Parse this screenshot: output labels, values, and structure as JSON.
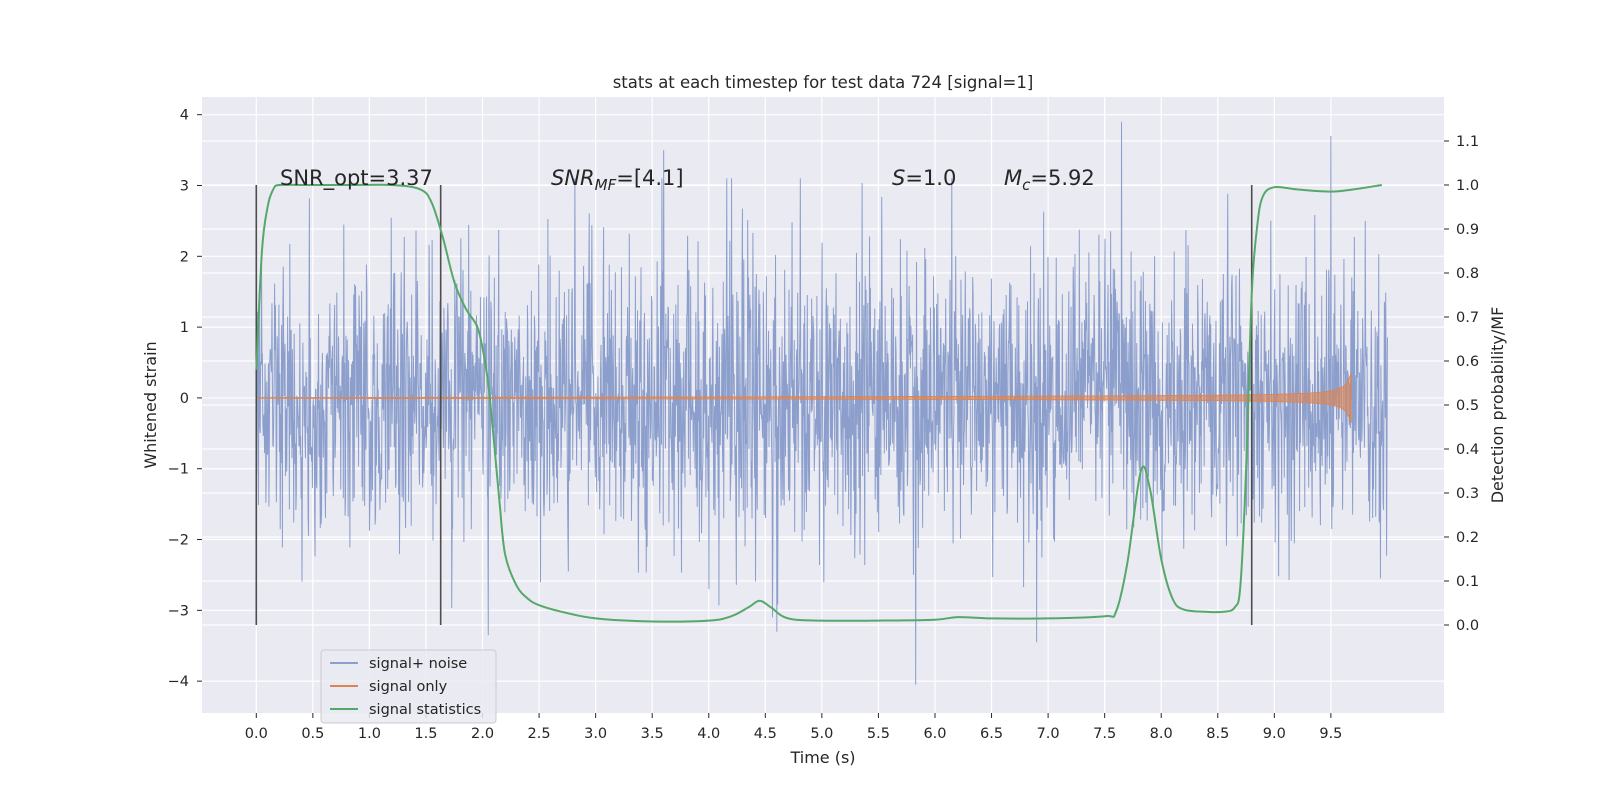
{
  "chart_data": {
    "type": "line",
    "title": "stats at each timestep for test data 724 [signal=1]",
    "xlabel": "Time (s)",
    "ylabel": "Whitened strain",
    "ylabel_right": "Detection probability/MF",
    "xlim": [
      -0.48,
      10.5
    ],
    "ylim": [
      -4.45,
      4.25
    ],
    "ylim_right": [
      -0.2,
      1.2
    ],
    "x_ticks": [
      "0.0",
      "0.5",
      "1.0",
      "1.5",
      "2.0",
      "2.5",
      "3.0",
      "3.5",
      "4.0",
      "4.5",
      "5.0",
      "5.5",
      "6.0",
      "6.5",
      "7.0",
      "7.5",
      "8.0",
      "8.5",
      "9.0",
      "9.5"
    ],
    "y_ticks": [
      "4",
      "3",
      "2",
      "1",
      "0",
      "−1",
      "−2",
      "−3",
      "−4"
    ],
    "y_tick_values": [
      4,
      3,
      2,
      1,
      0,
      -1,
      -2,
      -3,
      -4
    ],
    "y_right_ticks": [
      "1.1",
      "1.0",
      "0.9",
      "0.8",
      "0.7",
      "0.6",
      "0.5",
      "0.4",
      "0.3",
      "0.2",
      "0.1",
      "0.0"
    ],
    "y_right_tick_values": [
      1.1,
      1.0,
      0.9,
      0.8,
      0.7,
      0.6,
      0.5,
      0.4,
      0.3,
      0.2,
      0.1,
      0.0
    ],
    "grid": true,
    "legend_position": "lower-left",
    "colors": {
      "noise": "#8c9fcc",
      "signal": "#dd8452",
      "stats": "#55a868",
      "background": "#eaeaf2",
      "grid": "#ffffff",
      "vline": "#4d4d4d"
    },
    "annotations": {
      "snr_opt": "SNR_opt=3.37",
      "snr_mf_main": "SNR",
      "snr_mf_sub": "MF",
      "snr_mf_value": "=[4.1]",
      "s_symbol": "S",
      "s_value": "=1.0",
      "mc_symbol": "M",
      "mc_sub": "c",
      "mc_value": "=5.92"
    },
    "vertical_lines_x": [
      0.0,
      1.63,
      8.8
    ],
    "series": [
      {
        "name": "signal+ noise",
        "kind": "noise",
        "x_range": [
          0.0,
          10.0
        ],
        "typical_amplitude": 1.0,
        "peaks": [
          {
            "x": 7.65,
            "y": 3.9
          },
          {
            "x": 9.5,
            "y": 3.7
          },
          {
            "x": 3.6,
            "y": 3.5
          },
          {
            "x": 5.83,
            "y": -4.05
          },
          {
            "x": 6.9,
            "y": -3.45
          },
          {
            "x": 2.05,
            "y": -3.35
          },
          {
            "x": 4.6,
            "y": -3.3
          }
        ]
      },
      {
        "name": "signal only",
        "kind": "chirp",
        "x_range": [
          0.0,
          9.68
        ],
        "max_amplitude": 0.35
      },
      {
        "name": "signal statistics",
        "kind": "statistic",
        "x": [
          0.0,
          0.05,
          0.1,
          0.15,
          0.2,
          0.4,
          0.8,
          1.2,
          1.45,
          1.55,
          1.65,
          1.75,
          1.85,
          1.95,
          2.0,
          2.05,
          2.1,
          2.15,
          2.2,
          2.3,
          2.4,
          2.5,
          2.7,
          3.0,
          3.5,
          4.0,
          4.2,
          4.35,
          4.45,
          4.55,
          4.7,
          5.0,
          5.5,
          6.0,
          6.2,
          6.5,
          7.0,
          7.5,
          7.6,
          7.7,
          7.82,
          7.9,
          8.0,
          8.1,
          8.2,
          8.4,
          8.55,
          8.65,
          8.7,
          8.75,
          8.8,
          8.85,
          8.9,
          9.0,
          9.2,
          9.5,
          9.7,
          9.95
        ],
        "y": [
          0.58,
          0.85,
          0.95,
          0.99,
          1.0,
          1.0,
          1.0,
          1.0,
          0.99,
          0.96,
          0.88,
          0.78,
          0.72,
          0.68,
          0.63,
          0.55,
          0.42,
          0.28,
          0.16,
          0.09,
          0.06,
          0.045,
          0.03,
          0.015,
          0.008,
          0.01,
          0.02,
          0.04,
          0.055,
          0.04,
          0.015,
          0.01,
          0.01,
          0.012,
          0.018,
          0.015,
          0.015,
          0.02,
          0.03,
          0.14,
          0.35,
          0.31,
          0.15,
          0.06,
          0.035,
          0.03,
          0.03,
          0.04,
          0.09,
          0.35,
          0.75,
          0.91,
          0.975,
          0.995,
          0.99,
          0.985,
          0.99,
          1.0
        ]
      }
    ]
  }
}
